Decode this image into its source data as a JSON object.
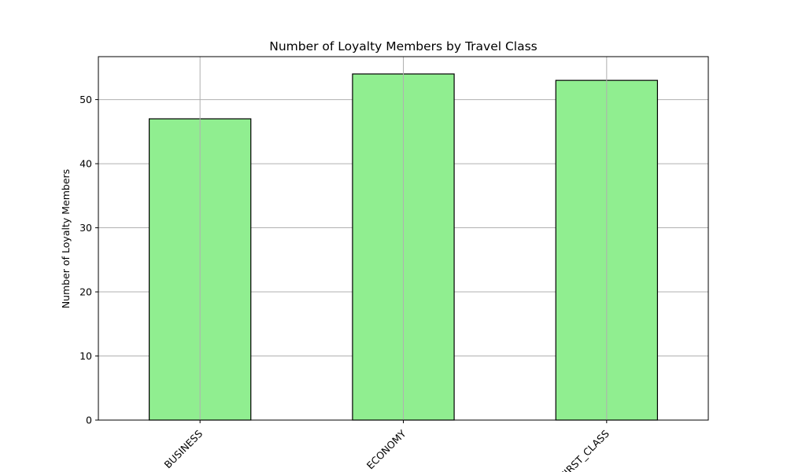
{
  "chart_data": {
    "type": "bar",
    "title": "Number of Loyalty Members by Travel Class",
    "xlabel": "",
    "ylabel": "Number of Loyalty Members",
    "categories": [
      "BUSINESS",
      "ECONOMY",
      "FIRST_CLASS"
    ],
    "values": [
      47,
      54,
      53
    ],
    "ylim": [
      0,
      56.7
    ],
    "yticks": [
      0,
      10,
      20,
      30,
      40,
      50
    ],
    "grid": true,
    "legend": "none",
    "bar_color": "#90ee90",
    "bar_edge_color": "#000000",
    "grid_color": "#b0b0b0"
  }
}
